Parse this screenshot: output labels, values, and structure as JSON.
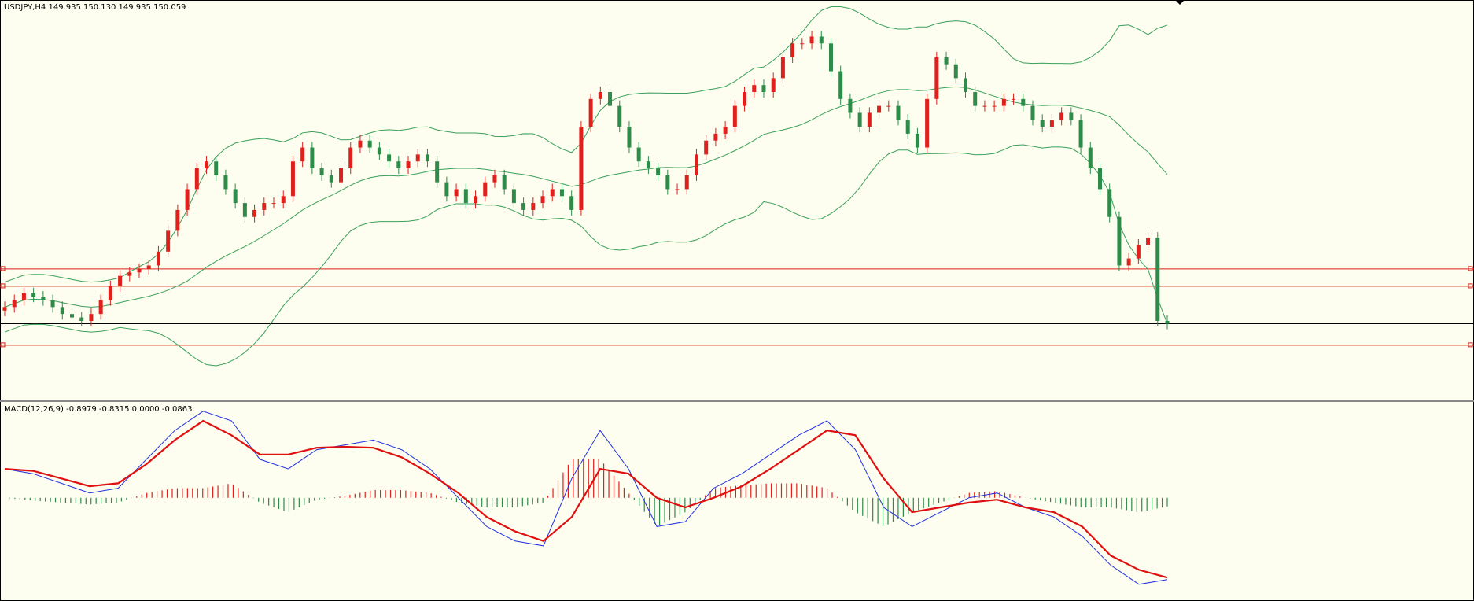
{
  "header": {
    "symbol_info": "USDJPY,H4 149.935 150.130 149.935 150.059"
  },
  "macd_header": {
    "info": "MACD(12,26,9) -0.8979 -0.8315 0.0000 -0.0863"
  },
  "colors": {
    "background": "#fdfdf0",
    "bull_candle": "#e0201c",
    "bear_candle": "#2e8b4a",
    "bollinger": "#3aa05a",
    "level_lines": "#e0201c",
    "price_line": "#000000",
    "macd_line": "#2030e0",
    "signal_line": "#e01010",
    "hist_pos": "#e0201c",
    "hist_neg": "#2e8b4a"
  },
  "chart_data": [
    {
      "type": "candlestick",
      "symbol": "USDJPY",
      "timeframe": "H4",
      "ylim": [
        149.0,
        154.5
      ],
      "horizontal_levels": [
        150.85,
        150.6,
        150.06,
        149.75
      ],
      "overlays": [
        "Bollinger upper",
        "Bollinger middle",
        "Bollinger lower"
      ],
      "candles_close": [
        150.3,
        150.4,
        150.5,
        150.45,
        150.4,
        150.3,
        150.2,
        150.15,
        150.1,
        150.2,
        150.4,
        150.6,
        150.75,
        150.8,
        150.85,
        150.9,
        151.1,
        151.4,
        151.7,
        152.0,
        152.3,
        152.4,
        152.2,
        152.0,
        151.8,
        151.6,
        151.7,
        151.8,
        151.8,
        151.9,
        152.4,
        152.6,
        152.3,
        152.2,
        152.1,
        152.3,
        152.6,
        152.7,
        152.6,
        152.5,
        152.4,
        152.3,
        152.4,
        152.5,
        152.4,
        152.1,
        151.9,
        152.0,
        151.8,
        151.9,
        152.1,
        152.2,
        152.0,
        151.8,
        151.7,
        151.8,
        151.9,
        152.0,
        151.9,
        151.7,
        152.9,
        153.3,
        153.4,
        153.2,
        152.9,
        152.6,
        152.4,
        152.3,
        152.2,
        152.0,
        152.0,
        152.2,
        152.5,
        152.7,
        152.8,
        152.9,
        153.2,
        153.4,
        153.5,
        153.4,
        153.6,
        153.9,
        154.1,
        154.1,
        154.2,
        154.1,
        153.7,
        153.3,
        153.1,
        152.9,
        153.1,
        153.2,
        153.2,
        153.0,
        152.8,
        152.6,
        153.3,
        153.9,
        153.8,
        153.6,
        153.4,
        153.2,
        153.2,
        153.2,
        153.3,
        153.3,
        153.2,
        153.0,
        152.9,
        153.0,
        153.1,
        153.0,
        152.6,
        152.3,
        152.0,
        151.6,
        150.9,
        151.0,
        151.2,
        151.3,
        150.1,
        150.06
      ]
    },
    {
      "type": "line",
      "name": "MACD(12,26,9)",
      "series": [
        {
          "name": "MACD",
          "values": [
            0.3,
            0.25,
            0.15,
            0.05,
            0.1,
            0.4,
            0.7,
            0.9,
            0.8,
            0.4,
            0.3,
            0.5,
            0.55,
            0.6,
            0.5,
            0.3,
            0.0,
            -0.3,
            -0.45,
            -0.5,
            0.2,
            0.7,
            0.3,
            -0.3,
            -0.25,
            0.1,
            0.25,
            0.45,
            0.65,
            0.8,
            0.5,
            -0.1,
            -0.3,
            -0.15,
            0.0,
            0.05,
            -0.1,
            -0.2,
            -0.4,
            -0.7,
            -0.9,
            -0.85
          ]
        },
        {
          "name": "Signal",
          "values": [
            0.3,
            0.28,
            0.2,
            0.12,
            0.15,
            0.35,
            0.6,
            0.8,
            0.65,
            0.45,
            0.45,
            0.52,
            0.53,
            0.52,
            0.42,
            0.25,
            0.05,
            -0.2,
            -0.35,
            -0.45,
            -0.2,
            0.3,
            0.25,
            0.0,
            -0.1,
            0.0,
            0.12,
            0.3,
            0.5,
            0.7,
            0.65,
            0.2,
            -0.15,
            -0.1,
            -0.05,
            -0.02,
            -0.1,
            -0.15,
            -0.3,
            -0.6,
            -0.75,
            -0.83
          ]
        }
      ],
      "histogram": [
        0.0,
        -0.03,
        -0.05,
        -0.07,
        -0.05,
        0.05,
        0.1,
        0.1,
        0.15,
        -0.05,
        -0.15,
        -0.02,
        0.02,
        0.08,
        0.08,
        0.05,
        -0.05,
        -0.1,
        -0.1,
        -0.05,
        0.4,
        0.4,
        0.05,
        -0.3,
        -0.15,
        0.1,
        0.13,
        0.15,
        0.15,
        0.1,
        -0.15,
        -0.3,
        -0.15,
        -0.05,
        0.05,
        0.07,
        0.0,
        -0.05,
        -0.1,
        -0.1,
        -0.15,
        -0.09
      ],
      "ylim": [
        -1.0,
        0.8
      ]
    }
  ]
}
